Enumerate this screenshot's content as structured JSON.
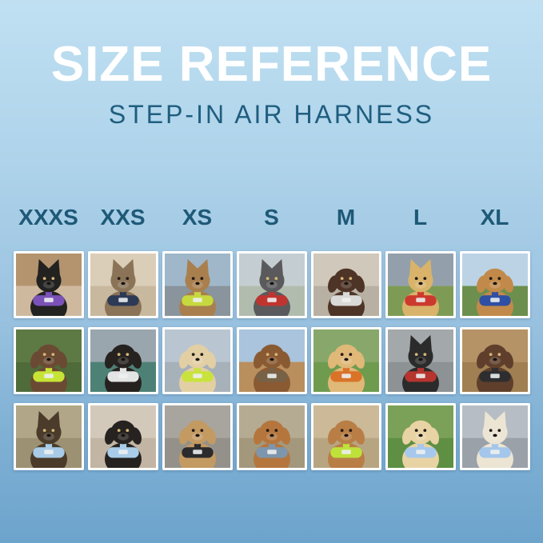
{
  "header": {
    "title": "SIZE REFERENCE",
    "subtitle": "STEP-IN AIR HARNESS"
  },
  "colors": {
    "background_top": "#c0e0f2",
    "background_bottom": "#6da4cc",
    "title_text": "#ffffff",
    "accent_teal": "#1e5977",
    "tile_frame": "#ffffff"
  },
  "sizes": [
    "XXXS",
    "XXS",
    "XS",
    "S",
    "M",
    "L",
    "XL"
  ],
  "grid": {
    "rows": [
      [
        {
          "size": "XXXS",
          "animal": "cat",
          "ears": "up",
          "alt": "black kitten wearing purple harness indoors",
          "back": "#b3946f",
          "ground": "#cfb99e",
          "fur": "#222220",
          "harness": "#7b52b8"
        },
        {
          "size": "XXS",
          "animal": "cat",
          "ears": "up",
          "alt": "brown tabby cat wearing navy harness by window",
          "back": "#dbceb8",
          "ground": "#c8b89e",
          "fur": "#8a7357",
          "harness": "#2c3a56"
        },
        {
          "size": "XS",
          "animal": "cat",
          "ears": "up",
          "alt": "bengal cat wearing yellow-green harness in car",
          "back": "#9fb7c9",
          "ground": "#8a949c",
          "fur": "#a97f4e",
          "harness": "#c6d93f"
        },
        {
          "size": "S",
          "animal": "dog",
          "ears": "up",
          "alt": "grey french bulldog wearing red harness outdoors",
          "back": "#c4ced2",
          "ground": "#b2bcae",
          "fur": "#5a5a5c",
          "harness": "#c03430"
        },
        {
          "size": "M",
          "animal": "dog",
          "ears": "down",
          "alt": "chocolate long-haired dachshund wearing white harness on pavement",
          "back": "#cfc8bb",
          "ground": "#b8b1a3",
          "fur": "#4e3426",
          "harness": "#d9d9d7"
        },
        {
          "size": "L",
          "animal": "dog",
          "ears": "up",
          "alt": "cream shiba inu wearing red harness on grass with stormy sky",
          "back": "#93a0ab",
          "ground": "#7e9b55",
          "fur": "#d9b36a",
          "harness": "#cc3a2e"
        },
        {
          "size": "XL",
          "animal": "dog",
          "ears": "down",
          "alt": "golden retriever wearing blue harness on flower-lined path",
          "back": "#bcd3e6",
          "ground": "#6d8f4e",
          "fur": "#c28a4a",
          "harness": "#2e4fa3"
        }
      ],
      [
        {
          "size": "XXXS",
          "animal": "dog",
          "ears": "down",
          "alt": "shaggy brown dachshund puppy wearing neon green harness in garden",
          "back": "#5d7a45",
          "ground": "#4f6b3a",
          "fur": "#6b4a33",
          "harness": "#c6e435"
        },
        {
          "size": "XXS",
          "animal": "dog",
          "ears": "down",
          "alt": "black pug puppy wearing white harness on teal blanket",
          "back": "#9aa6ae",
          "ground": "#4e8176",
          "fur": "#26221f",
          "harness": "#e2e5e4"
        },
        {
          "size": "XS",
          "animal": "dog",
          "ears": "down",
          "alt": "cream long-haired dachshund wearing neon green harness on boat",
          "back": "#b9c6d2",
          "ground": "#a7b1ba",
          "fur": "#e3cfa4",
          "harness": "#c9e23c"
        },
        {
          "size": "S",
          "animal": "dog",
          "ears": "down",
          "alt": "brown long-haired dachshund sitting on sunny wooden deck",
          "back": "#a9c4dc",
          "ground": "#b98f5e",
          "fur": "#8a5a33",
          "harness": "#776248"
        },
        {
          "size": "M",
          "animal": "dog",
          "ears": "down",
          "alt": "smiling golden retriever puppy wearing orange harness on lawn",
          "back": "#87a86a",
          "ground": "#6f9b4f",
          "fur": "#e0b878",
          "harness": "#d97328"
        },
        {
          "size": "L",
          "animal": "dog",
          "ears": "up",
          "alt": "black and tan kelpie wearing red harness inside metal tunnel",
          "back": "#a3a8ab",
          "ground": "#8d9295",
          "fur": "#2b2b2b",
          "harness": "#b6352e"
        },
        {
          "size": "XL",
          "animal": "dog",
          "ears": "down",
          "alt": "brown and white collie wearing black harness on wooden steps",
          "back": "#b59366",
          "ground": "#a07f52",
          "fur": "#5f3f2c",
          "harness": "#2e2e30"
        }
      ],
      [
        {
          "size": "XXXS",
          "animal": "dog",
          "ears": "up",
          "alt": "yorkie puppy wearing light blue harness on sunny path",
          "back": "#b1a687",
          "ground": "#9c9172",
          "fur": "#4a3b2a",
          "harness": "#a8cbe8"
        },
        {
          "size": "XXS",
          "animal": "dog",
          "ears": "down",
          "alt": "black and tan dachshund puppy wearing light blue harness on seat",
          "back": "#d3c9bb",
          "ground": "#c2b5a4",
          "fur": "#262220",
          "harness": "#a9cde9"
        },
        {
          "size": "XS",
          "animal": "dog",
          "ears": "down",
          "alt": "apricot doodle puppy wearing black harness on grey deck",
          "back": "#a7a59d",
          "ground": "#93918a",
          "fur": "#c49a63",
          "harness": "#2b2b2d"
        },
        {
          "size": "S",
          "animal": "dog",
          "ears": "down",
          "alt": "red dachshund wearing slate blue harness on deck",
          "back": "#b5ab93",
          "ground": "#a3987c",
          "fur": "#b5763d",
          "harness": "#7e96ad"
        },
        {
          "size": "M",
          "animal": "dog",
          "ears": "down",
          "alt": "apricot poodle wearing neon green harness on pavement",
          "back": "#cbb997",
          "ground": "#b7a582",
          "fur": "#b97e46",
          "harness": "#bfe23a"
        },
        {
          "size": "L",
          "animal": "dog",
          "ears": "down",
          "alt": "cream golden puppy wearing light blue harness and leash on grass",
          "back": "#7aa157",
          "ground": "#5f8f43",
          "fur": "#e8d3a4",
          "harness": "#a6c8ec"
        },
        {
          "size": "XL",
          "animal": "dog",
          "ears": "up",
          "alt": "white shepherd puppy wearing light blue harness on city street",
          "back": "#b7bdc4",
          "ground": "#9aa1a9",
          "fur": "#ece5d4",
          "harness": "#a4c6ea"
        }
      ]
    ]
  }
}
